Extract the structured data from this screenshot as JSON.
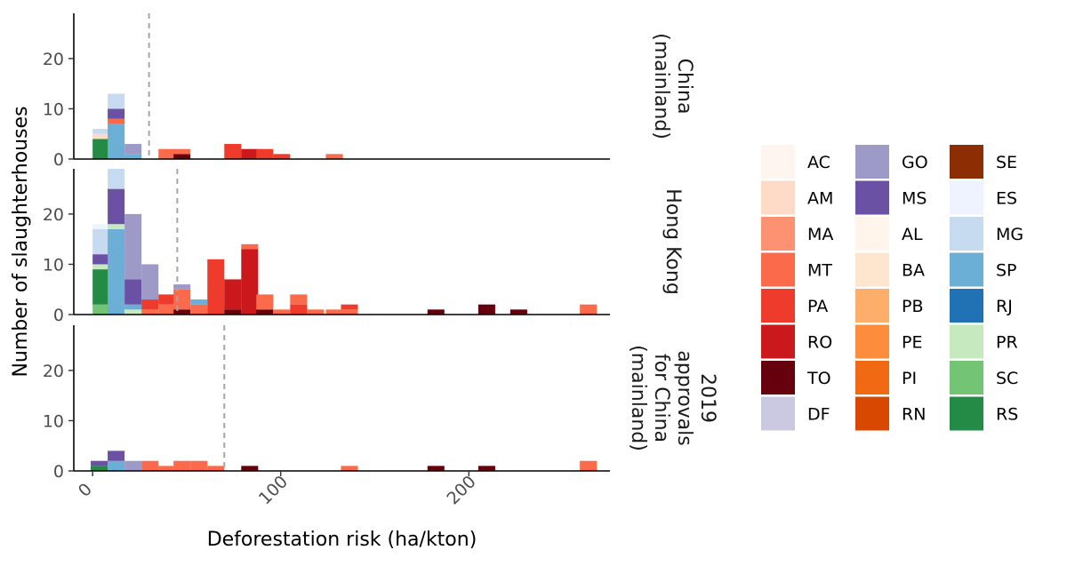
{
  "chart_data": {
    "type": "bar",
    "subtype": "stacked histogram, faceted by panel",
    "xlabel": "Deforestation risk (ha/kton)",
    "ylabel": "Number of slaughterhouses",
    "xlim": [
      -10,
      275
    ],
    "ylim": [
      0,
      29
    ],
    "x_ticks": [
      0,
      100,
      200
    ],
    "y_ticks": [
      0,
      10,
      20
    ],
    "bin_width": 9,
    "panels": [
      {
        "label": [
          "China",
          "(mainland)"
        ],
        "threshold_line": 30,
        "bars": [
          {
            "x": 0,
            "stack": [
              {
                "state": "RS",
                "n": 4
              },
              {
                "state": "AM",
                "n": 1
              },
              {
                "state": "MG",
                "n": 1
              }
            ]
          },
          {
            "x": 8,
            "stack": [
              {
                "state": "SP",
                "n": 7
              },
              {
                "state": "MT",
                "n": 1
              },
              {
                "state": "MS",
                "n": 2
              },
              {
                "state": "MG",
                "n": 3
              }
            ]
          },
          {
            "x": 17,
            "stack": [
              {
                "state": "SP",
                "n": 1
              },
              {
                "state": "GO",
                "n": 2
              }
            ]
          },
          {
            "x": 35,
            "stack": [
              {
                "state": "MT",
                "n": 2
              }
            ]
          },
          {
            "x": 43,
            "stack": [
              {
                "state": "TO",
                "n": 1
              },
              {
                "state": "MT",
                "n": 1
              }
            ]
          },
          {
            "x": 70,
            "stack": [
              {
                "state": "PA",
                "n": 3
              }
            ]
          },
          {
            "x": 79,
            "stack": [
              {
                "state": "RO",
                "n": 2
              }
            ]
          },
          {
            "x": 87,
            "stack": [
              {
                "state": "PA",
                "n": 2
              }
            ]
          },
          {
            "x": 96,
            "stack": [
              {
                "state": "PA",
                "n": 1
              }
            ]
          },
          {
            "x": 124,
            "stack": [
              {
                "state": "MT",
                "n": 1
              }
            ]
          }
        ]
      },
      {
        "label": [
          "Hong Kong"
        ],
        "threshold_line": 45,
        "bars": [
          {
            "x": 0,
            "stack": [
              {
                "state": "SC",
                "n": 2
              },
              {
                "state": "RS",
                "n": 7
              },
              {
                "state": "PR",
                "n": 1
              },
              {
                "state": "MS",
                "n": 2
              },
              {
                "state": "MG",
                "n": 5
              },
              {
                "state": "ES",
                "n": 1
              }
            ]
          },
          {
            "x": 8,
            "stack": [
              {
                "state": "SP",
                "n": 17
              },
              {
                "state": "PR",
                "n": 1
              },
              {
                "state": "MS",
                "n": 7
              },
              {
                "state": "MG",
                "n": 4
              }
            ]
          },
          {
            "x": 17,
            "stack": [
              {
                "state": "PR",
                "n": 1
              },
              {
                "state": "SP",
                "n": 1
              },
              {
                "state": "MS",
                "n": 5
              },
              {
                "state": "GO",
                "n": 13
              }
            ]
          },
          {
            "x": 26,
            "stack": [
              {
                "state": "MT",
                "n": 1
              },
              {
                "state": "PA",
                "n": 2
              },
              {
                "state": "GO",
                "n": 7
              }
            ]
          },
          {
            "x": 35,
            "stack": [
              {
                "state": "MT",
                "n": 2
              },
              {
                "state": "PA",
                "n": 2
              }
            ]
          },
          {
            "x": 43,
            "stack": [
              {
                "state": "TO",
                "n": 1
              },
              {
                "state": "MT",
                "n": 4
              },
              {
                "state": "GO",
                "n": 1
              }
            ]
          },
          {
            "x": 52,
            "stack": [
              {
                "state": "MT",
                "n": 2
              },
              {
                "state": "SP",
                "n": 1
              }
            ]
          },
          {
            "x": 61,
            "stack": [
              {
                "state": "PA",
                "n": 11
              }
            ]
          },
          {
            "x": 70,
            "stack": [
              {
                "state": "TO",
                "n": 1
              },
              {
                "state": "RO",
                "n": 6
              }
            ]
          },
          {
            "x": 79,
            "stack": [
              {
                "state": "RO",
                "n": 13
              },
              {
                "state": "MT",
                "n": 1
              }
            ]
          },
          {
            "x": 87,
            "stack": [
              {
                "state": "TO",
                "n": 1
              },
              {
                "state": "MT",
                "n": 3
              }
            ]
          },
          {
            "x": 96,
            "stack": [
              {
                "state": "MT",
                "n": 1
              }
            ]
          },
          {
            "x": 105,
            "stack": [
              {
                "state": "PA",
                "n": 2
              },
              {
                "state": "MT",
                "n": 2
              }
            ]
          },
          {
            "x": 114,
            "stack": [
              {
                "state": "MT",
                "n": 1
              }
            ]
          },
          {
            "x": 124,
            "stack": [
              {
                "state": "MT",
                "n": 1
              }
            ]
          },
          {
            "x": 132,
            "stack": [
              {
                "state": "MT",
                "n": 1
              },
              {
                "state": "PA",
                "n": 1
              }
            ]
          },
          {
            "x": 178,
            "stack": [
              {
                "state": "TO",
                "n": 1
              }
            ]
          },
          {
            "x": 205,
            "stack": [
              {
                "state": "TO",
                "n": 2
              }
            ]
          },
          {
            "x": 222,
            "stack": [
              {
                "state": "TO",
                "n": 1
              }
            ]
          },
          {
            "x": 259,
            "stack": [
              {
                "state": "MT",
                "n": 2
              }
            ]
          }
        ]
      },
      {
        "label": [
          "2019",
          "approvals",
          "for China",
          "(mainland)"
        ],
        "threshold_line": 70,
        "bars": [
          {
            "x": -1,
            "stack": [
              {
                "state": "RS",
                "n": 1
              },
              {
                "state": "MS",
                "n": 1
              }
            ]
          },
          {
            "x": 8,
            "stack": [
              {
                "state": "SP",
                "n": 2
              },
              {
                "state": "MS",
                "n": 2
              }
            ]
          },
          {
            "x": 17,
            "stack": [
              {
                "state": "GO",
                "n": 2
              }
            ]
          },
          {
            "x": 26,
            "stack": [
              {
                "state": "MT",
                "n": 2
              }
            ]
          },
          {
            "x": 35,
            "stack": [
              {
                "state": "MT",
                "n": 1
              }
            ]
          },
          {
            "x": 43,
            "stack": [
              {
                "state": "MT",
                "n": 2
              }
            ]
          },
          {
            "x": 52,
            "stack": [
              {
                "state": "MT",
                "n": 2
              }
            ]
          },
          {
            "x": 61,
            "stack": [
              {
                "state": "MT",
                "n": 1
              }
            ]
          },
          {
            "x": 79,
            "stack": [
              {
                "state": "TO",
                "n": 1
              }
            ]
          },
          {
            "x": 132,
            "stack": [
              {
                "state": "MT",
                "n": 1
              }
            ]
          },
          {
            "x": 178,
            "stack": [
              {
                "state": "TO",
                "n": 1
              }
            ]
          },
          {
            "x": 205,
            "stack": [
              {
                "state": "TO",
                "n": 1
              }
            ]
          },
          {
            "x": 259,
            "stack": [
              {
                "state": "MT",
                "n": 2
              }
            ]
          }
        ]
      }
    ],
    "legend": {
      "placement": "right",
      "columns": [
        [
          {
            "state": "AC",
            "color": "#fff5f0"
          },
          {
            "state": "AM",
            "color": "#fddbc7"
          },
          {
            "state": "MA",
            "color": "#fc9272"
          },
          {
            "state": "MT",
            "color": "#fb6a4a"
          },
          {
            "state": "PA",
            "color": "#ef3b2c"
          },
          {
            "state": "RO",
            "color": "#cb181d"
          },
          {
            "state": "TO",
            "color": "#67000d"
          },
          {
            "state": "DF",
            "color": "#cbc9e2"
          }
        ],
        [
          {
            "state": "GO",
            "color": "#9e9ac8"
          },
          {
            "state": "MS",
            "color": "#6a51a3"
          },
          {
            "state": "AL",
            "color": "#fff5eb"
          },
          {
            "state": "BA",
            "color": "#fee6ce"
          },
          {
            "state": "PB",
            "color": "#fdae6b"
          },
          {
            "state": "PE",
            "color": "#fd8d3c"
          },
          {
            "state": "PI",
            "color": "#f16913"
          },
          {
            "state": "RN",
            "color": "#d94801"
          }
        ],
        [
          {
            "state": "SE",
            "color": "#8c2d04"
          },
          {
            "state": "ES",
            "color": "#eff3ff"
          },
          {
            "state": "MG",
            "color": "#c6dbef"
          },
          {
            "state": "SP",
            "color": "#6baed6"
          },
          {
            "state": "RJ",
            "color": "#2171b5"
          },
          {
            "state": "PR",
            "color": "#c7e9c0"
          },
          {
            "state": "SC",
            "color": "#74c476"
          },
          {
            "state": "RS",
            "color": "#238b45"
          }
        ]
      ]
    }
  }
}
